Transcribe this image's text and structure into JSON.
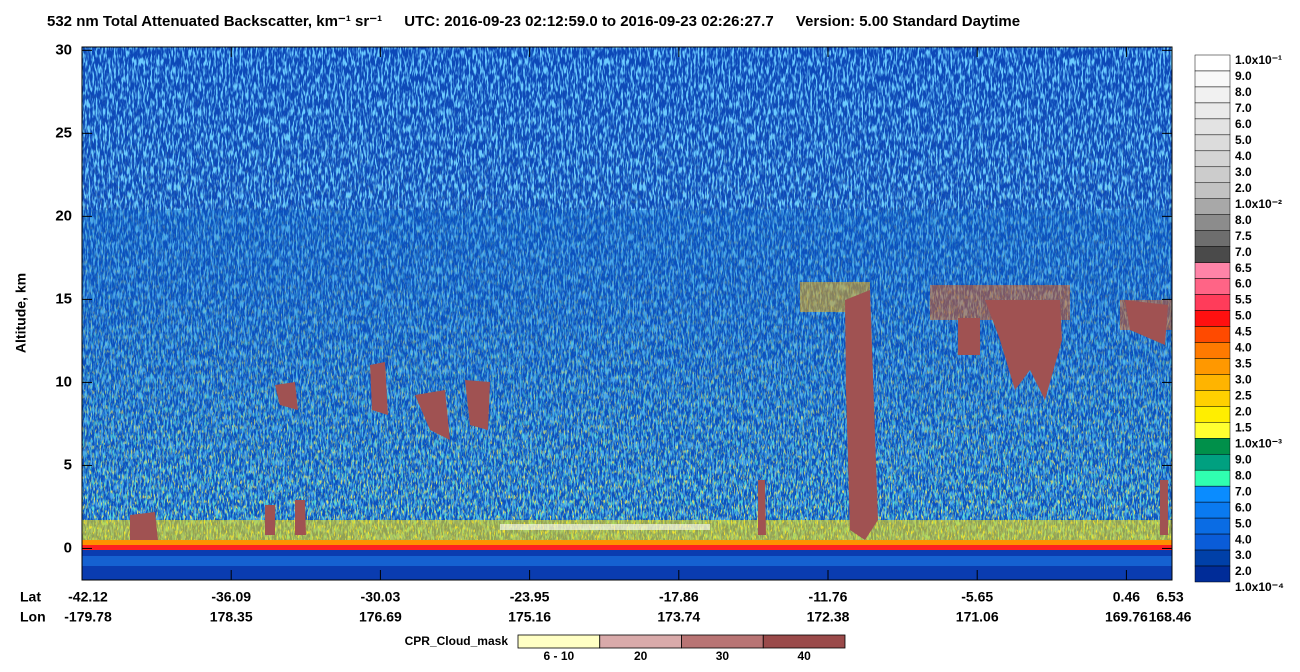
{
  "chart_data": {
    "type": "curtain",
    "title": "532 nm Total Attenuated Backscatter, km⁻¹ sr⁻¹",
    "subtitle": "UTC:  2016-09-23 02:12:59.0  to  2016-09-23 02:26:27.7",
    "version": "Version: 5.00  Standard  Daytime",
    "ylabel": "Altitude, km",
    "ylim": [
      -1.9,
      30.2
    ],
    "yticks": [
      0,
      5,
      10,
      15,
      20,
      25,
      30
    ],
    "lat_label": "Lat",
    "lon_label": "Lon",
    "lat_ticks": [
      "-42.12",
      "-36.09",
      "-30.03",
      "-23.95",
      "-17.86",
      "-11.76",
      "-5.65",
      "0.46",
      "6.53"
    ],
    "lon_ticks": [
      "-179.78",
      "178.35",
      "176.69",
      "175.16",
      "173.74",
      "172.38",
      "171.06",
      "169.76",
      "168.46"
    ],
    "colorbar_labels": [
      "1.0x10⁻¹",
      "9.0",
      "8.0",
      "7.0",
      "6.0",
      "5.0",
      "4.0",
      "3.0",
      "2.0",
      "1.0x10⁻²",
      "8.0",
      "7.5",
      "7.0",
      "6.5",
      "6.0",
      "5.5",
      "5.0",
      "4.5",
      "4.0",
      "3.5",
      "3.0",
      "2.5",
      "2.0",
      "1.5",
      "1.0x10⁻³",
      "9.0",
      "8.0",
      "7.0",
      "6.0",
      "5.0",
      "4.0",
      "3.0",
      "2.0",
      "1.0x10⁻⁴"
    ],
    "colorbar_colors": [
      "#ffffff",
      "#f8f8f8",
      "#f1f1f1",
      "#eaeaea",
      "#e3e3e3",
      "#dcdcdc",
      "#d4d4d4",
      "#cccccc",
      "#c2c2c2",
      "#a8a8a8",
      "#8c8c8c",
      "#6e6e6e",
      "#4a4a4a",
      "#ff84a8",
      "#ff6486",
      "#ff3c5a",
      "#ff1010",
      "#ff4a00",
      "#ff7a00",
      "#ff9800",
      "#ffb400",
      "#ffd000",
      "#ffee00",
      "#ffff30",
      "#00904a",
      "#00a080",
      "#30ffb0",
      "#0a8cff",
      "#0a7af0",
      "#0a6ce4",
      "#0a5cd8",
      "#0040a8",
      "#002c98"
    ],
    "mask_label": "CPR_Cloud_mask",
    "mask_categories": [
      "6 - 10",
      "20",
      "30",
      "40"
    ],
    "mask_colors": [
      "#ffffc4",
      "#d9aaaa",
      "#b87474",
      "#9a4a4a"
    ]
  }
}
